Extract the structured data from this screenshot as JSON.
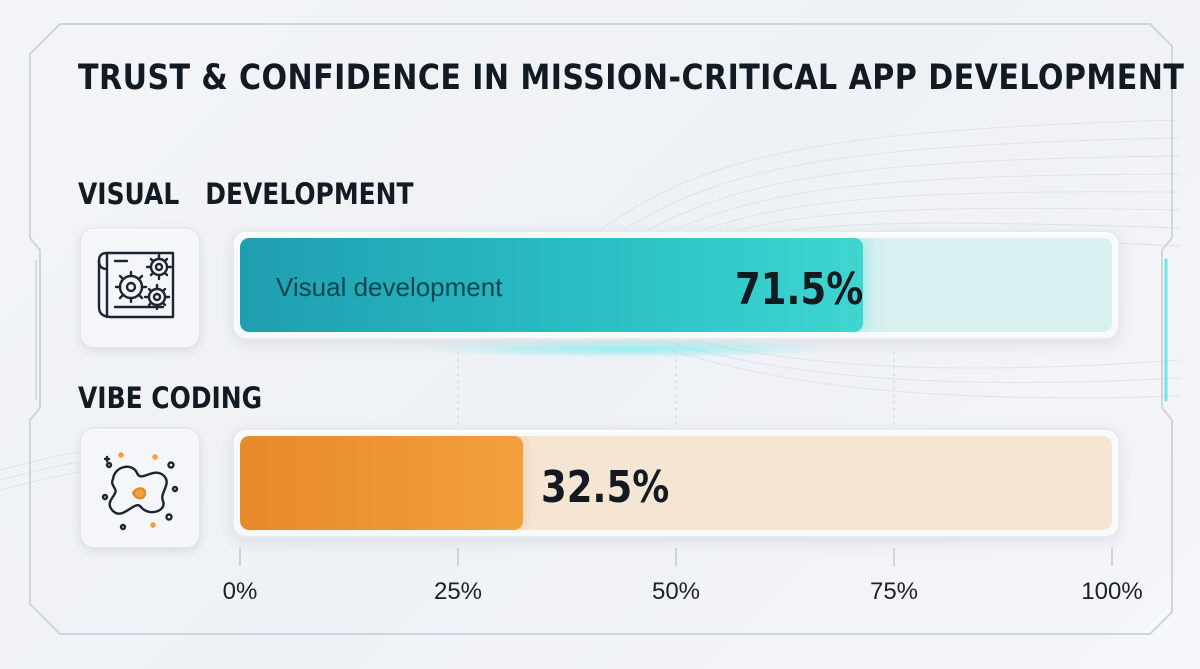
{
  "title": "TRUST & CONFIDENCE IN MISSION-CRITICAL APP DEVELOPMENT",
  "colors": {
    "visual_fill": "#2cc0c6",
    "visual_track": "#d8f0ef",
    "vibe_fill": "#f2a03f",
    "vibe_track": "#f5e6d3",
    "text": "#121a24"
  },
  "rows": [
    {
      "heading": "VISUAL   DEVELOPMENT",
      "icon": "blueprint-gears-icon",
      "bar_label": "Visual development",
      "value_label": "71.5%"
    },
    {
      "heading": "VIBE CODING",
      "icon": "abstract-squiggle-icon",
      "bar_label": "",
      "value_label": "32.5%"
    }
  ],
  "axis": {
    "tick_labels": [
      "0%",
      "25%",
      "50%",
      "75%",
      "100%"
    ]
  },
  "chart_data": {
    "type": "bar",
    "orientation": "horizontal",
    "title": "TRUST & CONFIDENCE IN MISSION-CRITICAL APP DEVELOPMENT",
    "categories": [
      "VISUAL   DEVELOPMENT",
      "VIBE CODING"
    ],
    "values": [
      71.5,
      32.5
    ],
    "xlim": [
      0,
      100
    ],
    "ticks": [
      0,
      25,
      50,
      75,
      100
    ],
    "grid": true,
    "legend": "none"
  }
}
